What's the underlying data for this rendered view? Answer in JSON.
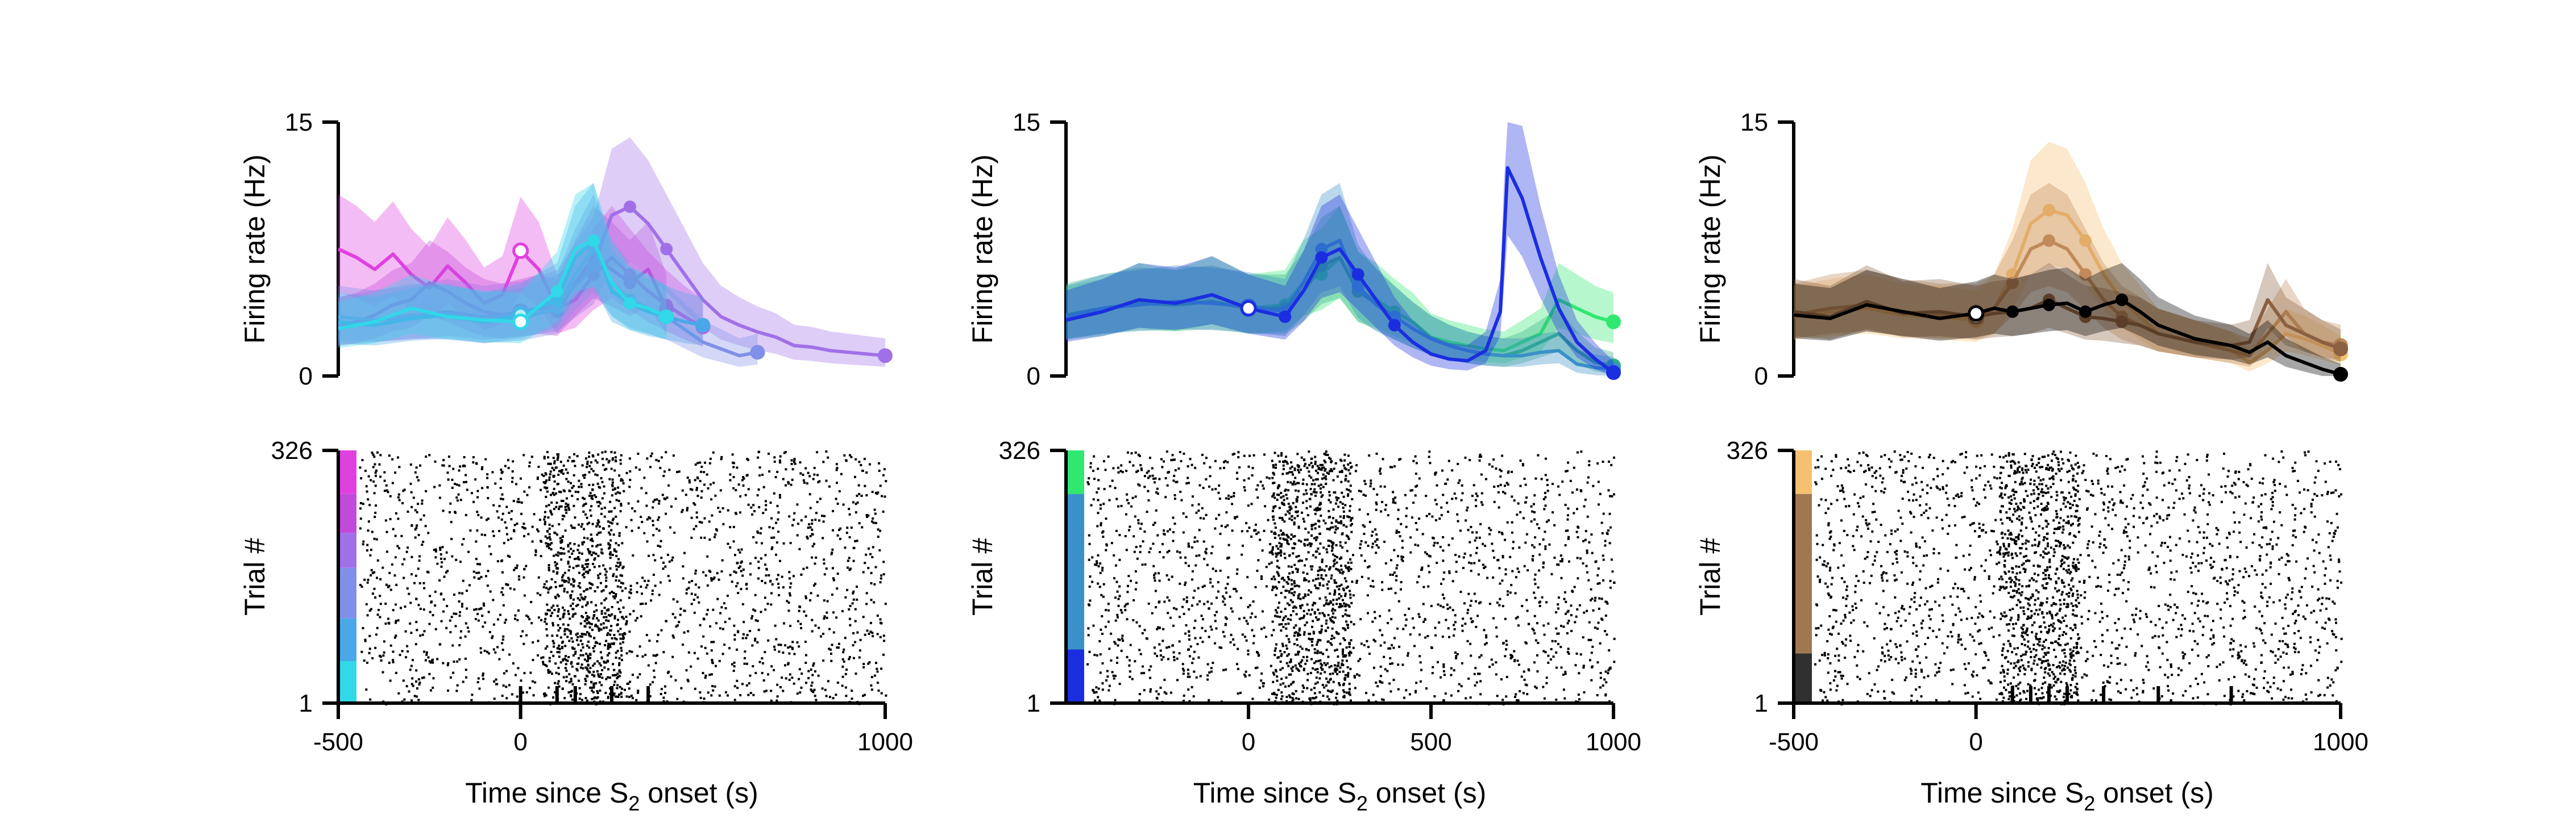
{
  "chart_data": [
    {
      "type": "line",
      "panel": "top-left",
      "ylabel": "Firing rate (Hz)",
      "ylim": [
        0,
        15
      ],
      "yticks": [
        "0",
        "15"
      ],
      "xlim": [
        -500,
        1000
      ],
      "series": [
        {
          "color": "#e040e0",
          "x": [
            -500,
            -450,
            -400,
            -350,
            -300,
            -250,
            -200,
            -150,
            -100,
            -50,
            0,
            50,
            100,
            150,
            200,
            250,
            300,
            350,
            400,
            450,
            500
          ],
          "y": [
            7.5,
            7,
            6.3,
            7.2,
            6,
            5.2,
            6.5,
            5.5,
            4.3,
            4.8,
            7.4,
            6.3,
            4,
            4.5,
            6,
            7,
            6,
            5,
            4.2,
            3.5,
            2.9
          ]
        },
        {
          "color": "#c24ad8",
          "x": [
            -500,
            -450,
            -400,
            -350,
            -300,
            -250,
            -200,
            -150,
            -100,
            -50,
            0,
            50,
            100,
            150,
            200,
            250,
            300,
            350,
            400
          ],
          "y": [
            3,
            3.2,
            3.6,
            4.2,
            4.5,
            5.5,
            5,
            4.3,
            3.8,
            3.6,
            3.8,
            4,
            3.8,
            5.5,
            7,
            6.3,
            5.5,
            6.3,
            4
          ]
        },
        {
          "color": "#a070e8",
          "x": [
            -500,
            -400,
            -300,
            -200,
            -100,
            0,
            100,
            200,
            250,
            300,
            350,
            400,
            450,
            500,
            550,
            600,
            650,
            700,
            750,
            800,
            850,
            900,
            950,
            1000
          ],
          "y": [
            3,
            3.3,
            3.5,
            3.8,
            3.5,
            3.7,
            4.2,
            6.5,
            9.5,
            10,
            9,
            7.5,
            6,
            4.5,
            3.5,
            3,
            2.6,
            2.3,
            1.8,
            1.7,
            1.5,
            1.4,
            1.3,
            1.2
          ]
        },
        {
          "color": "#8090e8",
          "x": [
            -500,
            -400,
            -300,
            -200,
            -100,
            0,
            100,
            150,
            200,
            250,
            300,
            400,
            500,
            600,
            650
          ],
          "y": [
            3.5,
            3.3,
            3.6,
            3.5,
            3.2,
            3.4,
            4,
            6,
            7.5,
            5.5,
            4.5,
            3.5,
            2,
            1.2,
            1.4
          ]
        },
        {
          "color": "#4aa8e8",
          "x": [
            -500,
            -400,
            -300,
            -200,
            -100,
            0,
            100,
            150,
            200,
            250,
            300,
            350,
            400,
            450,
            500
          ],
          "y": [
            3.2,
            3,
            3.4,
            3.6,
            3.2,
            3.6,
            4.5,
            7,
            8,
            5,
            4.3,
            3.8,
            3.5,
            3.2,
            3
          ]
        },
        {
          "color": "#30d8e8",
          "x": [
            -500,
            -400,
            -300,
            -200,
            -100,
            0,
            100,
            150,
            200,
            250,
            300,
            350,
            400
          ],
          "y": [
            2.8,
            3.2,
            4,
            3.5,
            3.3,
            3.2,
            5,
            7.5,
            8,
            5.5,
            4.3,
            4,
            3.5
          ]
        }
      ]
    },
    {
      "type": "line",
      "panel": "top-middle",
      "ylabel": "Firing rate (Hz)",
      "ylim": [
        0,
        15
      ],
      "yticks": [
        "0",
        "15"
      ],
      "xlim": [
        -500,
        1000
      ],
      "series": [
        {
          "color": "#30e870",
          "x": [
            -500,
            -400,
            -300,
            -200,
            -100,
            0,
            100,
            150,
            200,
            250,
            300,
            350,
            400,
            450,
            500,
            550,
            600,
            650,
            700,
            750,
            800,
            850,
            900,
            950,
            1000
          ],
          "y": [
            3.5,
            3.8,
            4.5,
            4.2,
            4.8,
            4,
            4.2,
            5.5,
            6,
            7,
            5,
            4.5,
            3.8,
            3.2,
            2.3,
            2,
            1.8,
            1.6,
            1.5,
            2,
            2.5,
            4.5,
            4,
            3.5,
            3.2
          ]
        },
        {
          "color": "#30b080",
          "x": [
            -500,
            -400,
            -300,
            -200,
            -100,
            0,
            100,
            150,
            200,
            250,
            300,
            350,
            400,
            450,
            500,
            550,
            600,
            650,
            700,
            750,
            800,
            850,
            900,
            950,
            1000
          ],
          "y": [
            3.6,
            4,
            4.3,
            4.2,
            4.4,
            4,
            4,
            5,
            6.5,
            7,
            5,
            4.3,
            3.5,
            2.8,
            2.2,
            1.8,
            1.5,
            1.3,
            1.2,
            1.5,
            2,
            2.5,
            1.5,
            0.8,
            0.6
          ]
        },
        {
          "color": "#3a90c8",
          "x": [
            -500,
            -400,
            -300,
            -200,
            -100,
            0,
            100,
            150,
            200,
            250,
            300,
            350,
            400,
            450,
            500,
            550,
            600,
            650,
            700,
            750,
            800,
            850,
            900,
            950,
            1000
          ],
          "y": [
            3.5,
            4,
            4.2,
            4.4,
            4.3,
            4.1,
            3.8,
            5.5,
            7.5,
            8,
            5.3,
            4.2,
            3.5,
            2.8,
            2.2,
            1.8,
            1.5,
            1.3,
            1.2,
            1.2,
            1.4,
            1.5,
            0.7,
            0.5,
            0.4
          ]
        },
        {
          "color": "#1a2ee0",
          "x": [
            -500,
            -400,
            -300,
            -200,
            -100,
            0,
            100,
            150,
            200,
            250,
            300,
            350,
            400,
            450,
            500,
            550,
            600,
            650,
            690,
            700,
            710,
            750,
            800,
            850,
            900,
            950,
            1000
          ],
          "y": [
            3.3,
            3.8,
            4.5,
            4.3,
            4.8,
            4,
            3.5,
            5,
            7,
            7.5,
            6,
            4.5,
            3,
            2,
            1.3,
            1,
            0.9,
            1.5,
            3.8,
            8,
            12.3,
            10.5,
            7,
            4,
            2,
            1,
            0.2
          ]
        }
      ]
    },
    {
      "type": "line",
      "panel": "top-right",
      "ylabel": "Firing rate (Hz)",
      "ylim": [
        0,
        15
      ],
      "yticks": [
        "0",
        "15"
      ],
      "xlim": [
        -500,
        1000
      ],
      "series": [
        {
          "color": "#f5c070",
          "x": [
            -500,
            -400,
            -300,
            -200,
            -100,
            0,
            50,
            100,
            150,
            200,
            250,
            300,
            350,
            400,
            450,
            500,
            600,
            700,
            750,
            800,
            850,
            900,
            950,
            1000
          ],
          "y": [
            3.5,
            3.8,
            4,
            3.6,
            3.5,
            3.3,
            4,
            6,
            9,
            9.8,
            9.5,
            8,
            6,
            4.5,
            3.5,
            2.5,
            2,
            1.5,
            0.8,
            1.5,
            2.5,
            2.2,
            1.8,
            1.3
          ]
        },
        {
          "color": "#c08a5a",
          "x": [
            -500,
            -400,
            -300,
            -200,
            -100,
            0,
            50,
            100,
            150,
            200,
            250,
            300,
            350,
            400,
            450,
            500,
            600,
            700,
            750,
            800,
            850,
            900,
            950,
            1000
          ],
          "y": [
            3.6,
            4,
            4.2,
            3.8,
            3.6,
            3.6,
            4,
            5.5,
            7.5,
            8,
            7.5,
            6,
            4.5,
            3.5,
            3,
            2.5,
            2,
            1.5,
            1.2,
            2.5,
            3.8,
            2.5,
            2,
            1.8
          ]
        },
        {
          "color": "#8a6040",
          "x": [
            -500,
            -400,
            -300,
            -200,
            -100,
            0,
            50,
            100,
            150,
            200,
            250,
            300,
            350,
            400,
            450,
            500,
            600,
            700,
            750,
            800,
            850,
            900,
            950,
            1000
          ],
          "y": [
            3.8,
            3.5,
            4.4,
            3.7,
            3.8,
            3.5,
            3.7,
            3.8,
            4,
            4.5,
            4,
            3.5,
            3.4,
            3.2,
            3,
            2.5,
            2,
            1.8,
            2,
            4.5,
            3,
            2.5,
            2,
            1.6
          ]
        },
        {
          "color": "#000000",
          "x": [
            -500,
            -400,
            -300,
            -200,
            -100,
            0,
            50,
            100,
            150,
            200,
            250,
            300,
            350,
            400,
            450,
            500,
            600,
            700,
            750,
            800,
            850,
            900,
            950,
            1000
          ],
          "y": [
            3.6,
            3.4,
            4.2,
            3.8,
            3.4,
            3.7,
            4,
            3.8,
            4,
            4.2,
            4.3,
            3.8,
            4.2,
            4.5,
            3.8,
            3,
            2.2,
            1.8,
            1.4,
            2,
            1.2,
            0.8,
            0.4,
            0.1
          ]
        }
      ]
    },
    {
      "type": "scatter",
      "panel": "bottom-left",
      "ylabel": "Trial #",
      "xlabel": "Time since S",
      "xlabel_sub": "2",
      "xlabel_suffix": " onset (s)",
      "yticks": [
        "1",
        "326"
      ],
      "xticks": [
        "-500",
        "0",
        "1000"
      ],
      "ylim": [
        1,
        326
      ],
      "xlim": [
        -500,
        1000
      ],
      "color_bar": [
        {
          "from": 1,
          "to": 55,
          "color": "#30d8e8"
        },
        {
          "from": 55,
          "to": 110,
          "color": "#4aa8e8"
        },
        {
          "from": 110,
          "to": 175,
          "color": "#8090e8"
        },
        {
          "from": 175,
          "to": 220,
          "color": "#a070e8"
        },
        {
          "from": 220,
          "to": 270,
          "color": "#c24ad8"
        },
        {
          "from": 270,
          "to": 326,
          "color": "#e040e0"
        }
      ]
    },
    {
      "type": "scatter",
      "panel": "bottom-middle",
      "ylabel": "Trial #",
      "xlabel": "Time since S",
      "xlabel_sub": "2",
      "xlabel_suffix": " onset (s)",
      "yticks": [
        "1",
        "326"
      ],
      "xticks": [
        "0",
        "500",
        "1000"
      ],
      "ylim": [
        1,
        326
      ],
      "xlim": [
        -500,
        1000
      ],
      "color_bar": [
        {
          "from": 1,
          "to": 70,
          "color": "#1a2ee0"
        },
        {
          "from": 70,
          "to": 270,
          "color": "#3a90c8"
        },
        {
          "from": 270,
          "to": 326,
          "color": "#30e870"
        }
      ]
    },
    {
      "type": "scatter",
      "panel": "bottom-right",
      "ylabel": "Trial #",
      "xlabel": "Time since S",
      "xlabel_sub": "2",
      "xlabel_suffix": " onset (s)",
      "yticks": [
        "1",
        "326"
      ],
      "xticks": [
        "-500",
        "0",
        "1000"
      ],
      "ylim": [
        1,
        326
      ],
      "xlim": [
        -500,
        1000
      ],
      "color_bar": [
        {
          "from": 1,
          "to": 65,
          "color": "#303030"
        },
        {
          "from": 65,
          "to": 270,
          "color": "#a07850"
        },
        {
          "from": 270,
          "to": 326,
          "color": "#f5c070"
        }
      ]
    }
  ]
}
